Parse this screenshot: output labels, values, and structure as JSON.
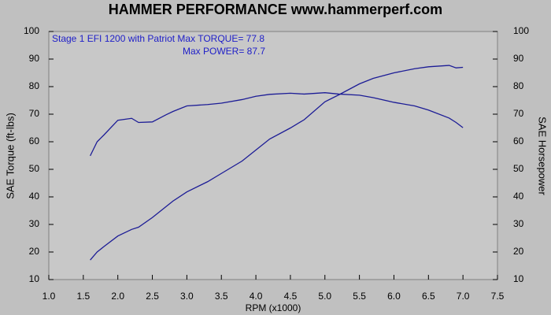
{
  "chart_data": {
    "type": "line",
    "title": "HAMMER PERFORMANCE www.hammerperf.com",
    "annotations": [
      "Stage 1 EFI 1200 with Patriot  Max TORQUE= 77.8",
      "Max POWER= 87.7"
    ],
    "xlabel": "RPM (x1000)",
    "ylabel": "SAE Torque (ft-lbs)",
    "y2label": "SAE Horsepower",
    "x": [
      1.6,
      1.7,
      1.8,
      2.0,
      2.2,
      2.3,
      2.5,
      2.7,
      2.8,
      3.0,
      3.3,
      3.5,
      3.8,
      4.0,
      4.2,
      4.5,
      4.7,
      5.0,
      5.2,
      5.5,
      5.7,
      6.0,
      6.3,
      6.5,
      6.8,
      6.9,
      7.0
    ],
    "series": [
      {
        "name": "SAE Torque (ft-lbs)",
        "color": "#1c1c96",
        "axis": "y",
        "values": [
          54.9,
          60,
          62.5,
          67.8,
          68.5,
          67,
          67.2,
          69.8,
          71,
          73,
          73.5,
          74,
          75.3,
          76.5,
          77.2,
          77.6,
          77.3,
          77.8,
          77.3,
          76.9,
          76,
          74.3,
          73,
          71.5,
          68.6,
          67,
          65.1
        ]
      },
      {
        "name": "SAE Horsepower",
        "color": "#1c1c96",
        "axis": "y2",
        "values": [
          17.1,
          20,
          22,
          25.8,
          28.2,
          29,
          32.5,
          36.5,
          38.5,
          41.8,
          45.5,
          48.5,
          53,
          57,
          61,
          65,
          68,
          74.5,
          77,
          81,
          83,
          85,
          86.5,
          87.2,
          87.7,
          86.8,
          87
        ]
      }
    ],
    "xlim": [
      1.0,
      7.5
    ],
    "xticks": [
      {
        "value": 1,
        "label": "1.0"
      },
      1.5,
      {
        "value": 2,
        "label": "2.0"
      },
      2.5,
      {
        "value": 3,
        "label": "3.0"
      },
      3.5,
      {
        "value": 4,
        "label": "4.0"
      },
      4.5,
      {
        "value": 5,
        "label": "5.0"
      },
      5.5,
      {
        "value": 6,
        "label": "6.0"
      },
      6.5,
      {
        "value": 7,
        "label": "7.0"
      },
      7.5
    ],
    "ylim": [
      10,
      100
    ],
    "yticks": [
      10,
      20,
      30,
      40,
      50,
      60,
      70,
      80,
      90,
      100
    ],
    "y2lim": [
      10,
      100
    ],
    "y2ticks": [
      10,
      20,
      30,
      40,
      50,
      60,
      70,
      80,
      90,
      100
    ],
    "grid": false
  }
}
